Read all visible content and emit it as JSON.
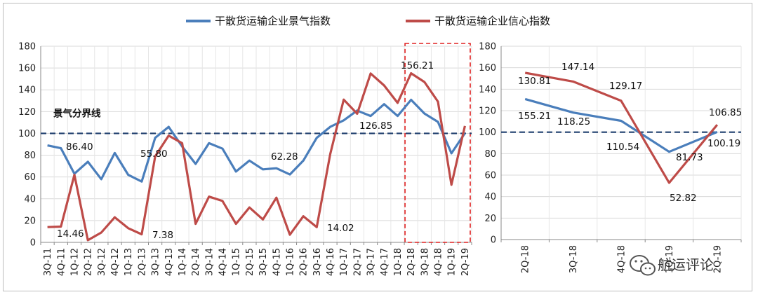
{
  "legend": {
    "series1": "干散货运输企业景气指数",
    "series2": "干散货运输企业信心指数"
  },
  "colors": {
    "series1": "#4a7ebb",
    "series2": "#be4b48",
    "boom_line": "#1f3f6e",
    "highlight_box": "#e02020"
  },
  "watermark": "航运评论",
  "watermark_icon": "wechat-icon",
  "chart_data": [
    {
      "type": "line",
      "title": "",
      "xlabel": "",
      "ylabel": "",
      "ylim": [
        0,
        180
      ],
      "yticks": [
        "0",
        "20",
        "40",
        "60",
        "80",
        "100",
        "120",
        "140",
        "160",
        "180"
      ],
      "categories": [
        "3Q-11",
        "4Q-11",
        "1Q-12",
        "2Q-12",
        "3Q-12",
        "4Q-12",
        "1Q-13",
        "2Q-13",
        "3Q-13",
        "4Q-13",
        "1Q-14",
        "2Q-14",
        "3Q-14",
        "4Q-14",
        "1Q-15",
        "2Q-15",
        "3Q-15",
        "4Q-15",
        "1Q-16",
        "2Q-16",
        "3Q-16",
        "4Q-16",
        "1Q-17",
        "2Q-17",
        "3Q-17",
        "4Q-17",
        "1Q-18",
        "2Q-18",
        "3Q-18",
        "4Q-18",
        "1Q-19",
        "2Q-19"
      ],
      "series": [
        {
          "name": "干散货运输企业景气指数",
          "values": [
            89,
            86.4,
            63,
            74,
            58,
            82,
            62,
            55.8,
            96,
            106,
            88,
            72,
            91,
            86,
            65,
            75,
            67,
            68,
            62.28,
            75,
            96,
            106,
            112,
            121,
            116,
            126.85,
            116,
            130.81,
            118.25,
            110.54,
            81.73,
            100.19
          ]
        },
        {
          "name": "干散货运输企业信心指数",
          "values": [
            14,
            14.46,
            62,
            2,
            9,
            23,
            13,
            7.38,
            79,
            98,
            91,
            17,
            42,
            38,
            17,
            32,
            21,
            41,
            7,
            24,
            14.02,
            81,
            131,
            118,
            155,
            144,
            128,
            155.21,
            147.14,
            129.17,
            52.82,
            106.85
          ]
        }
      ],
      "reference_line": {
        "label": "景气分界线",
        "value": 100
      },
      "annotations": [
        {
          "text": "86.40"
        },
        {
          "text": "55.80"
        },
        {
          "text": "62.28"
        },
        {
          "text": "126.85"
        },
        {
          "text": "156.21"
        },
        {
          "text": "14.46"
        },
        {
          "text": "7.38"
        },
        {
          "text": "14.02"
        }
      ],
      "highlight": "2Q-18 to 2Q-19",
      "grid": true
    },
    {
      "type": "line",
      "title": "",
      "xlabel": "",
      "ylabel": "",
      "ylim": [
        0,
        180
      ],
      "yticks": [
        "0",
        "20",
        "40",
        "60",
        "80",
        "100",
        "120",
        "140",
        "160",
        "180"
      ],
      "categories": [
        "2Q-18",
        "3Q-18",
        "4Q-18",
        "1Q-19",
        "2Q-19"
      ],
      "series": [
        {
          "name": "干散货运输企业景气指数",
          "values": [
            130.81,
            118.25,
            110.54,
            81.73,
            100.19
          ]
        },
        {
          "name": "干散货运输企业信心指数",
          "values": [
            155.21,
            147.14,
            129.17,
            52.82,
            106.85
          ]
        }
      ],
      "reference_line": {
        "value": 100
      },
      "annotations": [
        {
          "text": "130.81"
        },
        {
          "text": "147.14"
        },
        {
          "text": "129.17"
        },
        {
          "text": "155.21"
        },
        {
          "text": "118.25"
        },
        {
          "text": "106.85"
        },
        {
          "text": "110.54"
        },
        {
          "text": "81.73"
        },
        {
          "text": "100.19"
        },
        {
          "text": "52.82"
        }
      ],
      "grid": true
    }
  ]
}
